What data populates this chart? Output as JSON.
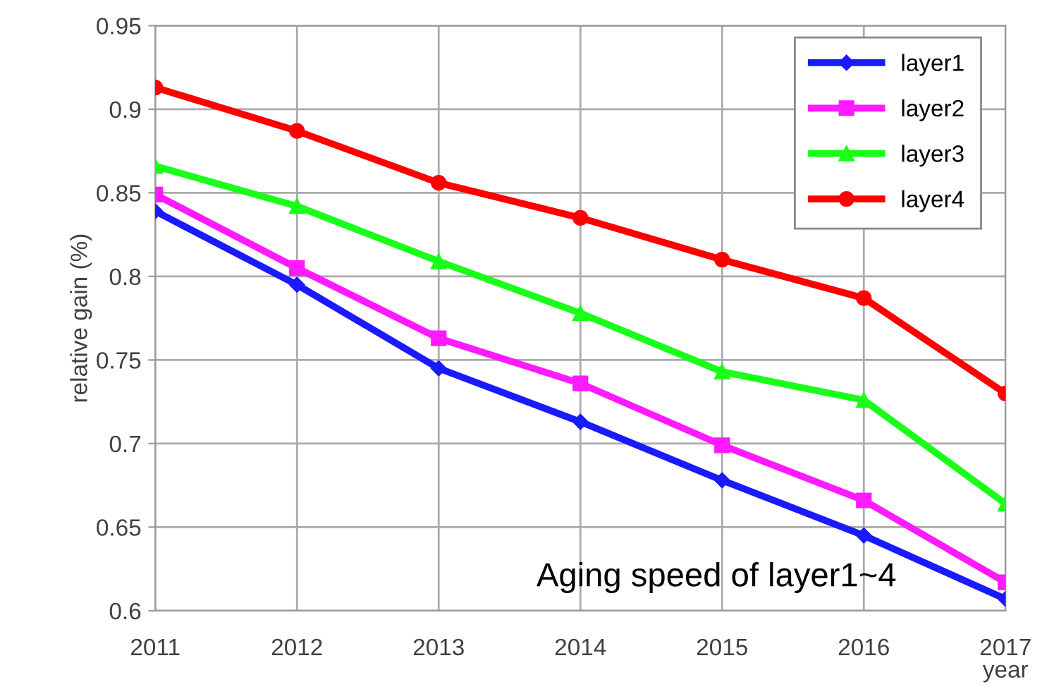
{
  "chart_data": {
    "type": "line",
    "xlabel": "year",
    "ylabel": "relative gain (%)",
    "x": [
      2011,
      2012,
      2013,
      2014,
      2015,
      2016,
      2017
    ],
    "xlim": [
      2011,
      2017
    ],
    "xticks": [
      2011,
      2012,
      2013,
      2014,
      2015,
      2016,
      2017
    ],
    "ylim": [
      0.6,
      0.95
    ],
    "yticks": [
      0.6,
      0.65,
      0.7,
      0.75,
      0.8,
      0.85,
      0.9,
      0.95
    ],
    "grid": true,
    "legend": "top right",
    "line_style": "solid",
    "annotations": [
      "Aging speed of layer1~4"
    ],
    "series": [
      {
        "name": "layer1",
        "color": "#1a1aff",
        "marker": "diamond",
        "values": [
          0.839,
          0.795,
          0.745,
          0.713,
          0.678,
          0.645,
          0.607
        ]
      },
      {
        "name": "layer2",
        "color": "#ff1aff",
        "marker": "square",
        "values": [
          0.849,
          0.805,
          0.763,
          0.736,
          0.699,
          0.666,
          0.617
        ]
      },
      {
        "name": "layer3",
        "color": "#1aff1a",
        "marker": "triangle",
        "values": [
          0.866,
          0.842,
          0.809,
          0.778,
          0.743,
          0.726,
          0.664
        ]
      },
      {
        "name": "layer4",
        "color": "#ff0000",
        "marker": "circle",
        "values": [
          0.913,
          0.887,
          0.856,
          0.835,
          0.81,
          0.787,
          0.73
        ]
      }
    ]
  }
}
